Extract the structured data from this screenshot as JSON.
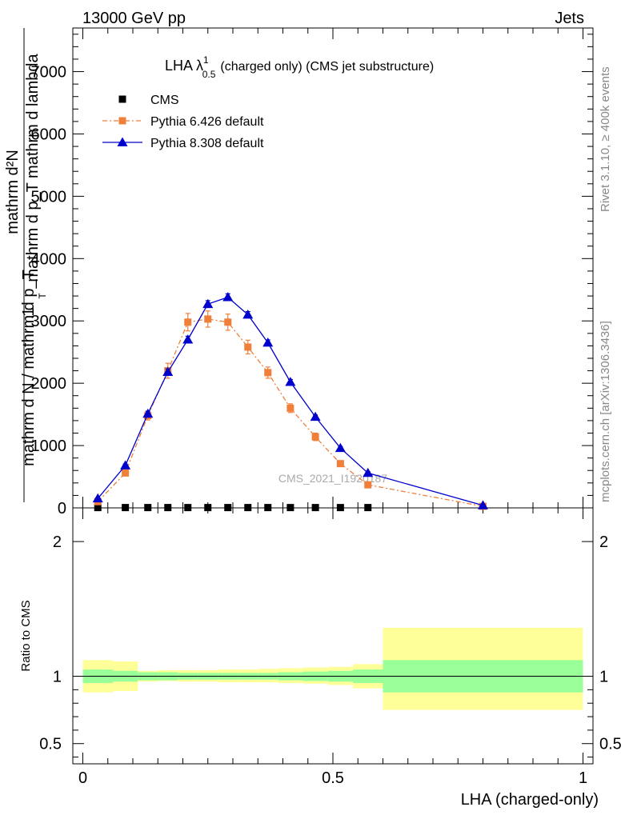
{
  "header": {
    "left": "13000 GeV pp",
    "right": "Jets"
  },
  "side_labels": {
    "rivet": "Rivet 3.1.10, ≥ 400k events",
    "mcplots": "mcplots.cern.ch [arXiv:1306.3436]"
  },
  "watermark": "CMS_2021_I1920187",
  "chart_data": [
    {
      "type": "line",
      "title": "LHA λ",
      "title_sup": "1",
      "title_sub": "0.5",
      "title_rest": "(charged only) (CMS jet substructure)",
      "ylabel": {
        "frac_top": "1",
        "frac_bottom": "mathrm d N / mathrm d p_T",
        "overlay_top": "mathrm d²N",
        "overlay_bottom": "mathrm d p_T mathrm d lambda",
        "overlay_sub": "T"
      },
      "ylim": [
        0,
        7700
      ],
      "xlim": [
        -0.02,
        1.02
      ],
      "y_ticks": [
        0,
        1000,
        2000,
        3000,
        4000,
        5000,
        6000,
        7000
      ],
      "y_tick_labels": [
        "0",
        "1000",
        "2000",
        "3000",
        "4000",
        "5000",
        "6000",
        "7000"
      ],
      "legend": {
        "position": "top-left",
        "entries": [
          "CMS",
          "Pythia 6.426 default",
          "Pythia 8.308 default"
        ]
      },
      "series": [
        {
          "name": "CMS",
          "color": "#000000",
          "marker": "square",
          "x": [
            0.03,
            0.085,
            0.13,
            0.17,
            0.21,
            0.25,
            0.29,
            0.33,
            0.37,
            0.415,
            0.465,
            0.515,
            0.57
          ],
          "y": [
            5,
            5,
            5,
            5,
            5,
            5,
            5,
            5,
            5,
            5,
            5,
            5,
            5
          ]
        },
        {
          "name": "Pythia 6.426 default",
          "color": "#f07f3a",
          "marker": "square",
          "x": [
            0.03,
            0.085,
            0.13,
            0.17,
            0.21,
            0.25,
            0.29,
            0.33,
            0.37,
            0.415,
            0.465,
            0.515,
            0.57,
            0.8
          ],
          "y": [
            100,
            560,
            1480,
            2200,
            2980,
            3030,
            2980,
            2580,
            2170,
            1600,
            1140,
            710,
            370,
            25
          ],
          "yerr": [
            15,
            40,
            70,
            120,
            140,
            130,
            130,
            110,
            90,
            70,
            60,
            40,
            25,
            5
          ]
        },
        {
          "name": "Pythia 8.308 default",
          "color": "#0000cc",
          "marker": "triangle",
          "x": [
            0.03,
            0.085,
            0.13,
            0.17,
            0.21,
            0.25,
            0.29,
            0.33,
            0.37,
            0.415,
            0.465,
            0.515,
            0.57,
            0.8
          ],
          "y": [
            150,
            680,
            1510,
            2180,
            2700,
            3270,
            3380,
            3100,
            2650,
            2020,
            1460,
            960,
            560,
            40
          ],
          "yerr": [
            10,
            25,
            40,
            50,
            55,
            55,
            55,
            50,
            45,
            40,
            30,
            25,
            20,
            5
          ]
        }
      ]
    },
    {
      "type": "area",
      "ylabel": "Ratio to CMS",
      "xlabel": "LHA (charged-only)",
      "ylim": [
        0.35,
        2.25
      ],
      "xlim": [
        -0.02,
        1.02
      ],
      "y_ticks": [
        0.5,
        1,
        2
      ],
      "y_tick_labels": [
        "0.5",
        "1",
        "2"
      ],
      "x_ticks": [
        0,
        0.5,
        1
      ],
      "x_tick_labels": [
        "0",
        "0.5",
        "1"
      ],
      "reference_line": 1,
      "bands": {
        "edges": [
          0,
          0.06,
          0.11,
          0.15,
          0.19,
          0.23,
          0.27,
          0.31,
          0.35,
          0.39,
          0.44,
          0.49,
          0.54,
          0.6,
          1.0
        ],
        "inner_lo": [
          0.95,
          0.96,
          0.97,
          0.97,
          0.975,
          0.975,
          0.975,
          0.975,
          0.975,
          0.97,
          0.965,
          0.96,
          0.95,
          0.88
        ],
        "inner_hi": [
          1.05,
          1.04,
          1.03,
          1.03,
          1.025,
          1.025,
          1.025,
          1.025,
          1.025,
          1.03,
          1.035,
          1.04,
          1.05,
          1.12
        ],
        "outer_lo": [
          0.88,
          0.89,
          0.96,
          0.965,
          0.96,
          0.96,
          0.955,
          0.955,
          0.955,
          0.95,
          0.945,
          0.935,
          0.91,
          0.75
        ],
        "outer_hi": [
          1.12,
          1.11,
          1.04,
          1.045,
          1.045,
          1.045,
          1.05,
          1.05,
          1.055,
          1.06,
          1.065,
          1.07,
          1.09,
          1.36
        ],
        "inner_color": "#99ff99",
        "outer_color": "#ffff99"
      }
    }
  ]
}
